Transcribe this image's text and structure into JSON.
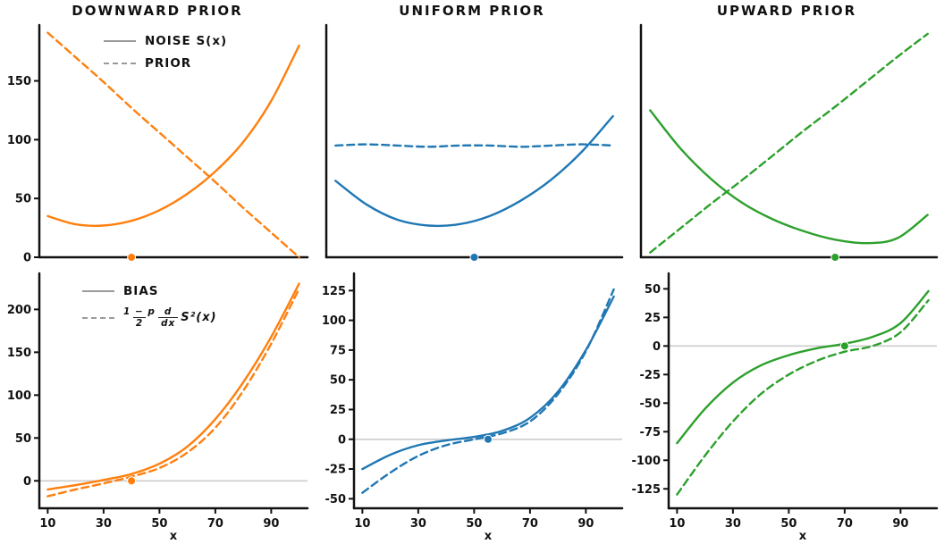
{
  "figure": {
    "titles": [
      "DOWNWARD PRIOR",
      "UNIFORM PRIOR",
      "UPWARD PRIOR"
    ],
    "xlabel": "x"
  },
  "legends": {
    "top": {
      "solid_label": "NOISE S(x)",
      "dashed_label": "PRIOR"
    },
    "bottom": {
      "solid_label": "BIAS",
      "dashed_expr": {
        "f1num": "1 − p",
        "f1den": "2",
        "f2num": "d",
        "f2den": "dx",
        "rest": "S²(x)"
      }
    }
  },
  "colors": {
    "orange": "#ff7f0e",
    "blue": "#1f77b4",
    "green": "#2ca02c",
    "axis": "#111111",
    "zero_line": "#cccccc",
    "legend_sample": "#9a9a9a"
  },
  "chart_data": [
    {
      "type": "line",
      "title": "DOWNWARD PRIOR",
      "xlim": [
        7,
        103
      ],
      "ylim": [
        0,
        196
      ],
      "x": [
        10,
        20,
        30,
        40,
        50,
        60,
        70,
        80,
        90,
        100
      ],
      "yticks": {
        "values": [
          0,
          50,
          100,
          150
        ],
        "labels": true
      },
      "xticks": {
        "values": [],
        "labels": false
      },
      "zero_line": false,
      "xlabel": "",
      "series": [
        {
          "name": "NOISE S(x)",
          "style": "solid",
          "color": "#ff7f0e",
          "values": [
            35,
            28,
            27,
            31,
            40,
            54,
            73,
            98,
            133,
            180
          ]
        },
        {
          "name": "PRIOR",
          "style": "dashed",
          "color": "#ff7f0e",
          "values": [
            191,
            170,
            149,
            127,
            106,
            85,
            64,
            42,
            21,
            0
          ]
        }
      ],
      "marker": {
        "x": 40,
        "y": 0,
        "color": "#ff7f0e"
      }
    },
    {
      "type": "line",
      "title": "UNIFORM PRIOR",
      "xlim": [
        7,
        103
      ],
      "ylim": [
        0,
        196
      ],
      "x": [
        10,
        20,
        30,
        40,
        50,
        60,
        70,
        80,
        90,
        100
      ],
      "yticks": {
        "values": [],
        "labels": false
      },
      "xticks": {
        "values": [],
        "labels": false
      },
      "zero_line": false,
      "xlabel": "",
      "series": [
        {
          "name": "NOISE S(x)",
          "style": "solid",
          "color": "#1f77b4",
          "values": [
            65,
            45,
            32,
            27,
            28,
            35,
            48,
            66,
            90,
            120
          ]
        },
        {
          "name": "PRIOR",
          "style": "dashed",
          "color": "#1f77b4",
          "values": [
            95,
            96,
            95,
            94,
            95,
            95,
            94,
            95,
            96,
            95
          ]
        }
      ],
      "marker": {
        "x": 55,
        "y": 0,
        "color": "#1f77b4"
      }
    },
    {
      "type": "line",
      "title": "UPWARD PRIOR",
      "xlim": [
        7,
        103
      ],
      "ylim": [
        0,
        196
      ],
      "x": [
        10,
        20,
        30,
        40,
        50,
        60,
        70,
        80,
        90,
        100
      ],
      "yticks": {
        "values": [],
        "labels": false
      },
      "xticks": {
        "values": [],
        "labels": false
      },
      "zero_line": false,
      "xlabel": "",
      "series": [
        {
          "name": "NOISE S(x)",
          "style": "solid",
          "color": "#2ca02c",
          "values": [
            125,
            92,
            66,
            46,
            32,
            22,
            15,
            12,
            16,
            36
          ]
        },
        {
          "name": "PRIOR",
          "style": "dashed",
          "color": "#2ca02c",
          "values": [
            4,
            25,
            46,
            66,
            87,
            108,
            128,
            149,
            170,
            190
          ]
        }
      ],
      "marker": {
        "x": 70,
        "y": 0,
        "color": "#2ca02c"
      }
    },
    {
      "type": "line",
      "title": "",
      "xlim": [
        7,
        103
      ],
      "ylim": [
        -32,
        240
      ],
      "x": [
        10,
        20,
        30,
        40,
        50,
        60,
        70,
        80,
        90,
        100
      ],
      "yticks": {
        "values": [
          0,
          50,
          100,
          150,
          200
        ],
        "labels": true
      },
      "xticks": {
        "values": [
          10,
          30,
          50,
          70,
          90
        ],
        "labels": true
      },
      "zero_line": true,
      "xlabel": "x",
      "series": [
        {
          "name": "BIAS",
          "style": "solid",
          "color": "#ff7f0e",
          "values": [
            -10,
            -5,
            1,
            8,
            20,
            40,
            72,
            115,
            168,
            230
          ]
        },
        {
          "name": "(1−p)/2 d/dx S²(x)",
          "style": "dashed",
          "color": "#ff7f0e",
          "values": [
            -18,
            -10,
            -3,
            5,
            15,
            33,
            62,
            105,
            160,
            224
          ]
        }
      ],
      "marker": {
        "x": 40,
        "y": 0,
        "color": "#ff7f0e"
      }
    },
    {
      "type": "line",
      "title": "",
      "xlim": [
        7,
        103
      ],
      "ylim": [
        -58,
        138
      ],
      "x": [
        10,
        20,
        30,
        40,
        50,
        60,
        70,
        80,
        90,
        100
      ],
      "yticks": {
        "values": [
          -50,
          -25,
          0,
          25,
          50,
          75,
          100,
          125
        ],
        "labels": true
      },
      "xticks": {
        "values": [
          10,
          30,
          50,
          70,
          90
        ],
        "labels": true
      },
      "zero_line": true,
      "xlabel": "x",
      "series": [
        {
          "name": "BIAS",
          "style": "solid",
          "color": "#1f77b4",
          "values": [
            -25,
            -13,
            -5,
            -1,
            2,
            7,
            18,
            40,
            75,
            120
          ]
        },
        {
          "name": "(1−p)/2 d/dx S²(x)",
          "style": "dashed",
          "color": "#1f77b4",
          "values": [
            -45,
            -28,
            -14,
            -5,
            0,
            5,
            15,
            38,
            74,
            126
          ]
        }
      ],
      "marker": {
        "x": 55,
        "y": 0,
        "color": "#1f77b4"
      }
    },
    {
      "type": "line",
      "title": "",
      "xlim": [
        7,
        103
      ],
      "ylim": [
        -142,
        62
      ],
      "x": [
        10,
        20,
        30,
        40,
        50,
        60,
        70,
        80,
        90,
        100
      ],
      "yticks": {
        "values": [
          -125,
          -100,
          -75,
          -50,
          -25,
          0,
          25,
          50
        ],
        "labels": true
      },
      "xticks": {
        "values": [
          10,
          30,
          50,
          70,
          90
        ],
        "labels": true
      },
      "zero_line": true,
      "xlabel": "x",
      "series": [
        {
          "name": "BIAS",
          "style": "solid",
          "color": "#2ca02c",
          "values": [
            -85,
            -55,
            -32,
            -17,
            -8,
            -2,
            2,
            8,
            20,
            48
          ]
        },
        {
          "name": "(1−p)/2 d/dx S²(x)",
          "style": "dashed",
          "color": "#2ca02c",
          "values": [
            -130,
            -96,
            -66,
            -42,
            -25,
            -13,
            -5,
            0,
            12,
            40
          ]
        }
      ],
      "marker": {
        "x": 70,
        "y": 0,
        "color": "#2ca02c"
      }
    }
  ]
}
